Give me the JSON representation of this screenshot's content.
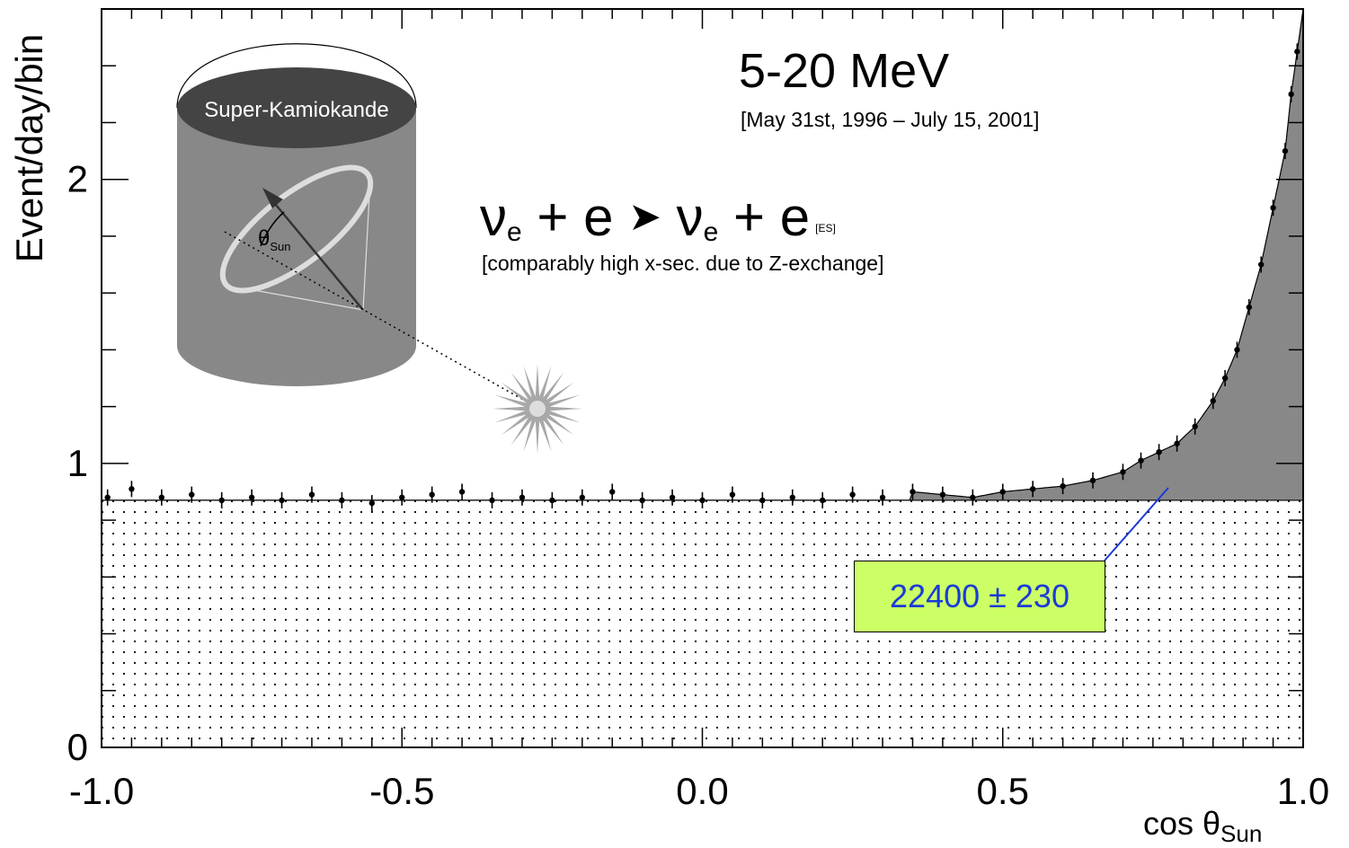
{
  "chart_data": {
    "type": "scatter",
    "title": "5-20 MeV",
    "subtitle": "[May 31st, 1996 – July 15, 2001]",
    "xlabel": "cos θ",
    "xlabel_sub": "Sun",
    "ylabel": "Event/day/bin",
    "xlim": [
      -1.0,
      1.0
    ],
    "ylim": [
      0,
      2.6
    ],
    "x_ticks": [
      "-1.0",
      "-0.5",
      "0.0",
      "0.5",
      "1.0"
    ],
    "y_ticks": [
      "0",
      "1",
      "2"
    ],
    "background_level": 0.87,
    "background_hatch": "dotted",
    "signal_fill_color": "#888888",
    "points": [
      {
        "x": -0.99,
        "y": 0.88
      },
      {
        "x": -0.95,
        "y": 0.91
      },
      {
        "x": -0.9,
        "y": 0.88
      },
      {
        "x": -0.85,
        "y": 0.89
      },
      {
        "x": -0.8,
        "y": 0.87
      },
      {
        "x": -0.75,
        "y": 0.88
      },
      {
        "x": -0.7,
        "y": 0.87
      },
      {
        "x": -0.65,
        "y": 0.89
      },
      {
        "x": -0.6,
        "y": 0.87
      },
      {
        "x": -0.55,
        "y": 0.86
      },
      {
        "x": -0.5,
        "y": 0.88
      },
      {
        "x": -0.45,
        "y": 0.89
      },
      {
        "x": -0.4,
        "y": 0.9
      },
      {
        "x": -0.35,
        "y": 0.87
      },
      {
        "x": -0.3,
        "y": 0.88
      },
      {
        "x": -0.25,
        "y": 0.87
      },
      {
        "x": -0.2,
        "y": 0.88
      },
      {
        "x": -0.15,
        "y": 0.9
      },
      {
        "x": -0.1,
        "y": 0.87
      },
      {
        "x": -0.05,
        "y": 0.88
      },
      {
        "x": 0.0,
        "y": 0.87
      },
      {
        "x": 0.05,
        "y": 0.89
      },
      {
        "x": 0.1,
        "y": 0.87
      },
      {
        "x": 0.15,
        "y": 0.88
      },
      {
        "x": 0.2,
        "y": 0.87
      },
      {
        "x": 0.25,
        "y": 0.89
      },
      {
        "x": 0.3,
        "y": 0.88
      },
      {
        "x": 0.35,
        "y": 0.9
      },
      {
        "x": 0.4,
        "y": 0.89
      },
      {
        "x": 0.45,
        "y": 0.88
      },
      {
        "x": 0.5,
        "y": 0.9
      },
      {
        "x": 0.55,
        "y": 0.91
      },
      {
        "x": 0.6,
        "y": 0.92
      },
      {
        "x": 0.65,
        "y": 0.94
      },
      {
        "x": 0.7,
        "y": 0.97
      },
      {
        "x": 0.73,
        "y": 1.01
      },
      {
        "x": 0.76,
        "y": 1.04
      },
      {
        "x": 0.79,
        "y": 1.07
      },
      {
        "x": 0.82,
        "y": 1.13
      },
      {
        "x": 0.85,
        "y": 1.22
      },
      {
        "x": 0.87,
        "y": 1.3
      },
      {
        "x": 0.89,
        "y": 1.4
      },
      {
        "x": 0.91,
        "y": 1.55
      },
      {
        "x": 0.93,
        "y": 1.7
      },
      {
        "x": 0.95,
        "y": 1.9
      },
      {
        "x": 0.97,
        "y": 2.1
      },
      {
        "x": 0.98,
        "y": 2.3
      },
      {
        "x": 0.99,
        "y": 2.45
      }
    ],
    "reaction": {
      "nu": "ν",
      "sub": "e",
      "plus": "+",
      "e": "e",
      "arrow": "➤",
      "tag": "[ES]"
    },
    "reaction_note": "[comparably high x-sec. due to Z-exchange]",
    "detector_label": "Super-Kamiokande",
    "angle_label": "θ",
    "angle_sub": "Sun",
    "signal_count": "22400 ± 230",
    "signal_count_text_color": "#1a3bd6",
    "signal_count_box_color": "#ccff66"
  }
}
